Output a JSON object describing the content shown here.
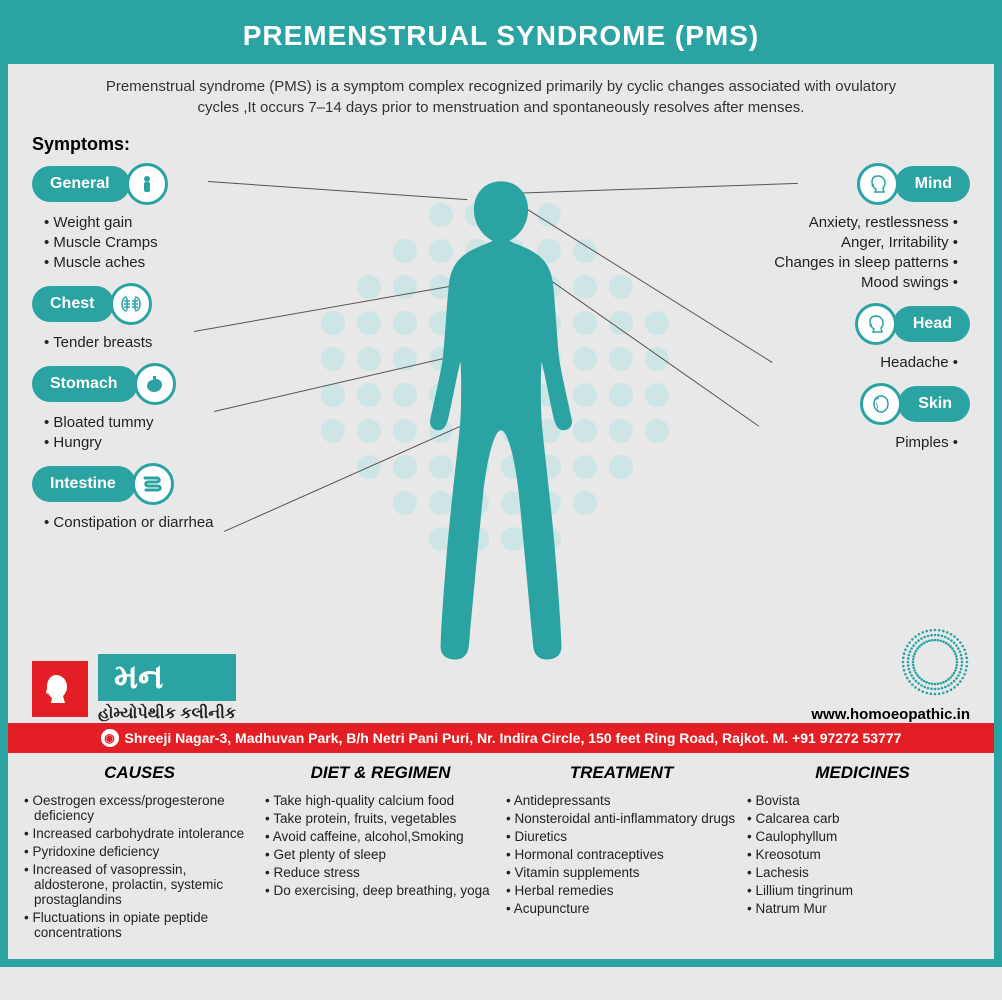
{
  "title": "PREMENSTRUAL SYNDROME (PMS)",
  "intro": "Premenstrual syndrome (PMS) is a symptom complex recognized primarily by cyclic changes associated with ovulatory cycles ,It occurs 7–14 days prior to menstruation and spontaneously resolves after menses.",
  "symptoms_label": "Symptoms:",
  "colors": {
    "teal": "#2ba3a3",
    "red": "#e31e24",
    "bg": "#e8e8e8"
  },
  "left": [
    {
      "label": "General",
      "items": [
        "Weight gain",
        "Muscle Cramps",
        "Muscle aches"
      ]
    },
    {
      "label": "Chest",
      "items": [
        "Tender breasts"
      ]
    },
    {
      "label": "Stomach",
      "items": [
        "Bloated tummy",
        "Hungry"
      ]
    },
    {
      "label": "Intestine",
      "items": [
        "Constipation or diarrhea"
      ]
    }
  ],
  "right": [
    {
      "label": "Mind",
      "items": [
        "Anxiety, restlessness",
        "Anger, Irritability",
        "Changes in sleep patterns",
        "Mood swings"
      ]
    },
    {
      "label": "Head",
      "items": [
        "Headache"
      ]
    },
    {
      "label": "Skin",
      "items": [
        "Pimples"
      ]
    }
  ],
  "logo": {
    "main": "મન",
    "sub": "હોમ્યોપેથીક કલીનીક"
  },
  "url": "www.homoeopathic.in",
  "address": "Shreeji Nagar-3, Madhuvan Park, B/h Netri Pani Puri, Nr. Indira Circle, 150 feet Ring Road, Rajkot. M. +91 97272 53777",
  "columns": [
    {
      "title": "CAUSES",
      "items": [
        "Oestrogen excess/progesterone deficiency",
        "Increased carbohydrate intolerance",
        "Pyridoxine deficiency",
        "Increased of vasopressin, aldosterone, prolactin, systemic prostaglandins",
        "Fluctuations in opiate peptide concentrations"
      ]
    },
    {
      "title": "DIET & REGIMEN",
      "items": [
        "Take high-quality calcium food",
        "Take protein, fruits, vegetables",
        "Avoid caffeine, alcohol,Smoking",
        "Get plenty of sleep",
        "Reduce  stress",
        "Do exercising, deep breathing,  yoga"
      ]
    },
    {
      "title": "TREATMENT",
      "items": [
        "Antidepressants",
        "Nonsteroidal anti-inflammatory drugs",
        "Diuretics",
        "Hormonal contraceptives",
        "Vitamin supplements",
        "Herbal remedies",
        "Acupuncture"
      ]
    },
    {
      "title": "MEDICINES",
      "items": [
        "Bovista",
        "Calcarea carb",
        "Caulophyllum",
        "Kreosotum",
        "Lachesis",
        "Lillium tingrinum",
        "Natrum Mur"
      ]
    }
  ]
}
